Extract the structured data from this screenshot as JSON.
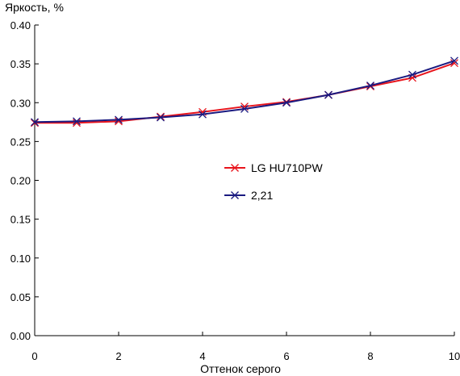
{
  "chart_data": {
    "type": "line",
    "title": "",
    "xlabel": "Оттенок серого",
    "ylabel": "Яркость, %",
    "xlim": [
      0,
      10
    ],
    "ylim": [
      0,
      0.4
    ],
    "xticks": [
      0,
      2,
      4,
      6,
      8,
      10
    ],
    "yticks": [
      0.0,
      0.05,
      0.1,
      0.15,
      0.2,
      0.25,
      0.3,
      0.35,
      0.4
    ],
    "grid": false,
    "legend_placement": "center",
    "x": [
      0,
      1,
      2,
      3,
      4,
      5,
      6,
      7,
      8,
      9,
      10
    ],
    "series": [
      {
        "name": "LG HU710PW",
        "color": "#e8141c",
        "marker": "x",
        "values": [
          0.274,
          0.274,
          0.276,
          0.282,
          0.288,
          0.295,
          0.301,
          0.31,
          0.321,
          0.332,
          0.351
        ]
      },
      {
        "name": "2,21",
        "color": "#1a1a80",
        "marker": "x",
        "values": [
          0.275,
          0.276,
          0.278,
          0.281,
          0.285,
          0.292,
          0.3,
          0.31,
          0.322,
          0.336,
          0.354
        ]
      }
    ]
  }
}
